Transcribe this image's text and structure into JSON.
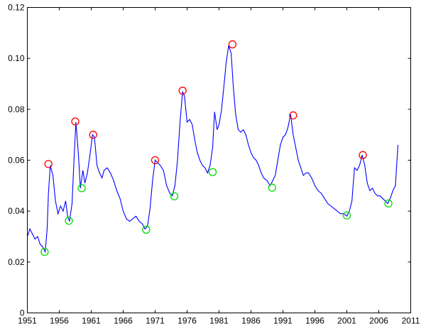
{
  "chart_data": {
    "type": "line",
    "title": "",
    "xlabel": "",
    "ylabel": "",
    "xlim": [
      1951,
      2011
    ],
    "ylim": [
      0,
      0.12
    ],
    "x_ticks": [
      1951,
      1956,
      1961,
      1966,
      1971,
      1976,
      1981,
      1986,
      1991,
      1996,
      2001,
      2006,
      2011
    ],
    "x_tick_labels": [
      "1951",
      "1956",
      "1961",
      "1966",
      "1971",
      "1976",
      "1981",
      "1986",
      "1991",
      "1996",
      "2001",
      "2006",
      "2011"
    ],
    "y_ticks": [
      0,
      0.02,
      0.04,
      0.06,
      0.08,
      0.1,
      0.12
    ],
    "y_tick_labels": [
      "0",
      "0.02",
      "0.04",
      "0.06",
      "0.08",
      "0.10",
      "0.12"
    ],
    "grid": false,
    "legend": "none",
    "colors": {
      "line": "#0000ff",
      "peak": "#ff0000",
      "trough": "#00dd00"
    },
    "series": [
      {
        "x": [
          1951.0,
          1951.4,
          1951.8,
          1952.2,
          1952.6,
          1953.0,
          1953.4,
          1953.8,
          1954.1,
          1954.3,
          1954.6,
          1955.0,
          1955.4,
          1955.8,
          1956.2,
          1956.6,
          1957.0,
          1957.3,
          1957.6,
          1958.0,
          1958.3,
          1958.6,
          1959.0,
          1959.3,
          1959.7,
          1960.0,
          1960.4,
          1960.8,
          1961.2,
          1961.5,
          1961.9,
          1962.3,
          1962.7,
          1963.0,
          1963.5,
          1964.0,
          1964.5,
          1965.0,
          1965.5,
          1966.0,
          1966.5,
          1967.0,
          1967.5,
          1968.0,
          1968.5,
          1969.0,
          1969.4,
          1969.8,
          1970.2,
          1970.6,
          1971.0,
          1971.4,
          1971.8,
          1972.3,
          1972.8,
          1973.3,
          1973.7,
          1974.1,
          1974.5,
          1974.9,
          1975.3,
          1975.6,
          1976.0,
          1976.4,
          1976.8,
          1977.2,
          1977.6,
          1978.0,
          1978.4,
          1978.8,
          1979.2,
          1979.6,
          1980.0,
          1980.3,
          1980.7,
          1981.0,
          1981.4,
          1981.8,
          1982.1,
          1982.5,
          1982.9,
          1983.2,
          1983.6,
          1984.0,
          1984.4,
          1984.8,
          1985.2,
          1985.6,
          1986.0,
          1986.4,
          1986.8,
          1987.2,
          1987.6,
          1988.0,
          1988.5,
          1989.0,
          1989.4,
          1989.8,
          1990.2,
          1990.6,
          1991.0,
          1991.4,
          1991.8,
          1992.2,
          1992.6,
          1993.0,
          1993.4,
          1993.8,
          1994.2,
          1994.6,
          1995.0,
          1995.5,
          1996.0,
          1996.5,
          1997.0,
          1997.5,
          1998.0,
          1998.5,
          1999.0,
          1999.5,
          2000.0,
          2000.5,
          2001.0,
          2001.4,
          2001.8,
          2002.2,
          2002.6,
          2003.0,
          2003.4,
          2003.8,
          2004.2,
          2004.6,
          2005.0,
          2005.4,
          2005.8,
          2006.2,
          2006.6,
          2007.0,
          2007.4,
          2007.8,
          2008.2,
          2008.6,
          2009.0
        ],
        "values": [
          0.03,
          0.033,
          0.031,
          0.029,
          0.03,
          0.027,
          0.026,
          0.024,
          0.033,
          0.047,
          0.058,
          0.054,
          0.044,
          0.039,
          0.042,
          0.04,
          0.044,
          0.038,
          0.036,
          0.043,
          0.06,
          0.075,
          0.062,
          0.049,
          0.056,
          0.051,
          0.055,
          0.062,
          0.07,
          0.069,
          0.058,
          0.055,
          0.053,
          0.056,
          0.057,
          0.055,
          0.052,
          0.048,
          0.045,
          0.04,
          0.037,
          0.036,
          0.037,
          0.038,
          0.036,
          0.035,
          0.033,
          0.034,
          0.041,
          0.052,
          0.06,
          0.059,
          0.058,
          0.056,
          0.05,
          0.047,
          0.046,
          0.05,
          0.06,
          0.075,
          0.087,
          0.085,
          0.075,
          0.076,
          0.074,
          0.068,
          0.063,
          0.06,
          0.058,
          0.057,
          0.055,
          0.058,
          0.065,
          0.079,
          0.072,
          0.074,
          0.08,
          0.09,
          0.098,
          0.105,
          0.102,
          0.09,
          0.078,
          0.072,
          0.071,
          0.072,
          0.07,
          0.066,
          0.063,
          0.061,
          0.06,
          0.058,
          0.055,
          0.053,
          0.052,
          0.05,
          0.052,
          0.054,
          0.06,
          0.066,
          0.069,
          0.07,
          0.073,
          0.078,
          0.07,
          0.065,
          0.06,
          0.057,
          0.054,
          0.055,
          0.055,
          0.053,
          0.05,
          0.048,
          0.047,
          0.045,
          0.043,
          0.042,
          0.041,
          0.04,
          0.039,
          0.039,
          0.038,
          0.04,
          0.044,
          0.057,
          0.056,
          0.058,
          0.062,
          0.058,
          0.051,
          0.048,
          0.049,
          0.047,
          0.046,
          0.046,
          0.045,
          0.044,
          0.043,
          0.045,
          0.048,
          0.05,
          0.066
        ]
      }
    ],
    "peaks": [
      {
        "x": 1954.3,
        "y": 0.0585
      },
      {
        "x": 1958.5,
        "y": 0.0752
      },
      {
        "x": 1961.3,
        "y": 0.07
      },
      {
        "x": 1971.0,
        "y": 0.06
      },
      {
        "x": 1975.3,
        "y": 0.0873
      },
      {
        "x": 1983.1,
        "y": 0.1055
      },
      {
        "x": 1992.6,
        "y": 0.0776
      },
      {
        "x": 2003.5,
        "y": 0.062
      }
    ],
    "troughs": [
      {
        "x": 1953.7,
        "y": 0.024
      },
      {
        "x": 1957.5,
        "y": 0.0362
      },
      {
        "x": 1959.5,
        "y": 0.049
      },
      {
        "x": 1969.6,
        "y": 0.0327
      },
      {
        "x": 1974.0,
        "y": 0.0458
      },
      {
        "x": 1980.0,
        "y": 0.0553
      },
      {
        "x": 1989.3,
        "y": 0.0492
      },
      {
        "x": 2001.0,
        "y": 0.0383
      },
      {
        "x": 2007.5,
        "y": 0.043
      }
    ]
  }
}
